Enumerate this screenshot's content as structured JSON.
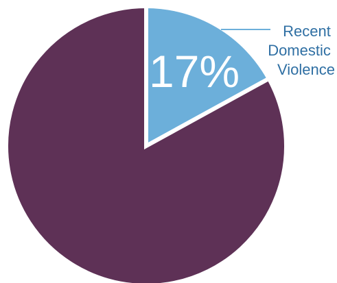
{
  "chart_data": {
    "type": "pie",
    "title": "",
    "slices": [
      {
        "label": "Recent Domestic Violence",
        "value": 17,
        "display": "17%",
        "color": "#6cafda"
      },
      {
        "label": "",
        "value": 83,
        "display": "",
        "color": "#5e3156"
      }
    ],
    "callout": {
      "lines": [
        "Recent",
        "Domestic",
        "Violence"
      ],
      "line_color": "#6cafda",
      "text_color": "#2f6fa3"
    },
    "slice_separator_color": "#ffffff",
    "start_angle_deg": 0,
    "direction": "clockwise"
  }
}
